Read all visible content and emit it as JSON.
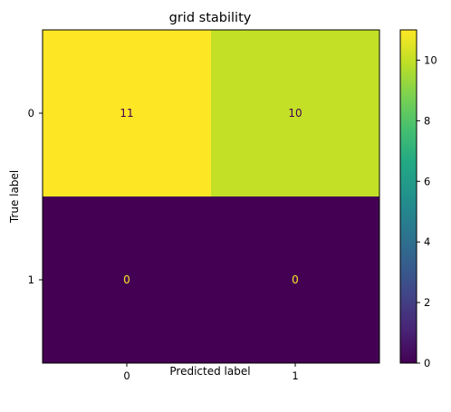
{
  "chart_data": {
    "type": "heatmap",
    "title": "grid stability",
    "xlabel": "Predicted label",
    "ylabel": "True label",
    "x_categories": [
      "0",
      "1"
    ],
    "y_categories": [
      "0",
      "1"
    ],
    "values": [
      [
        11,
        10
      ],
      [
        0,
        0
      ]
    ],
    "colormap": "viridis",
    "colorbar_range": [
      0,
      11
    ],
    "colorbar_ticks": [
      "0",
      "2",
      "4",
      "6",
      "8",
      "10"
    ],
    "grid": false,
    "legend": "colorbar-right"
  },
  "colors": {
    "high": "#fde725",
    "low": "#440154",
    "text_on_light": "#440154",
    "text_on_dark": "#fde725"
  }
}
